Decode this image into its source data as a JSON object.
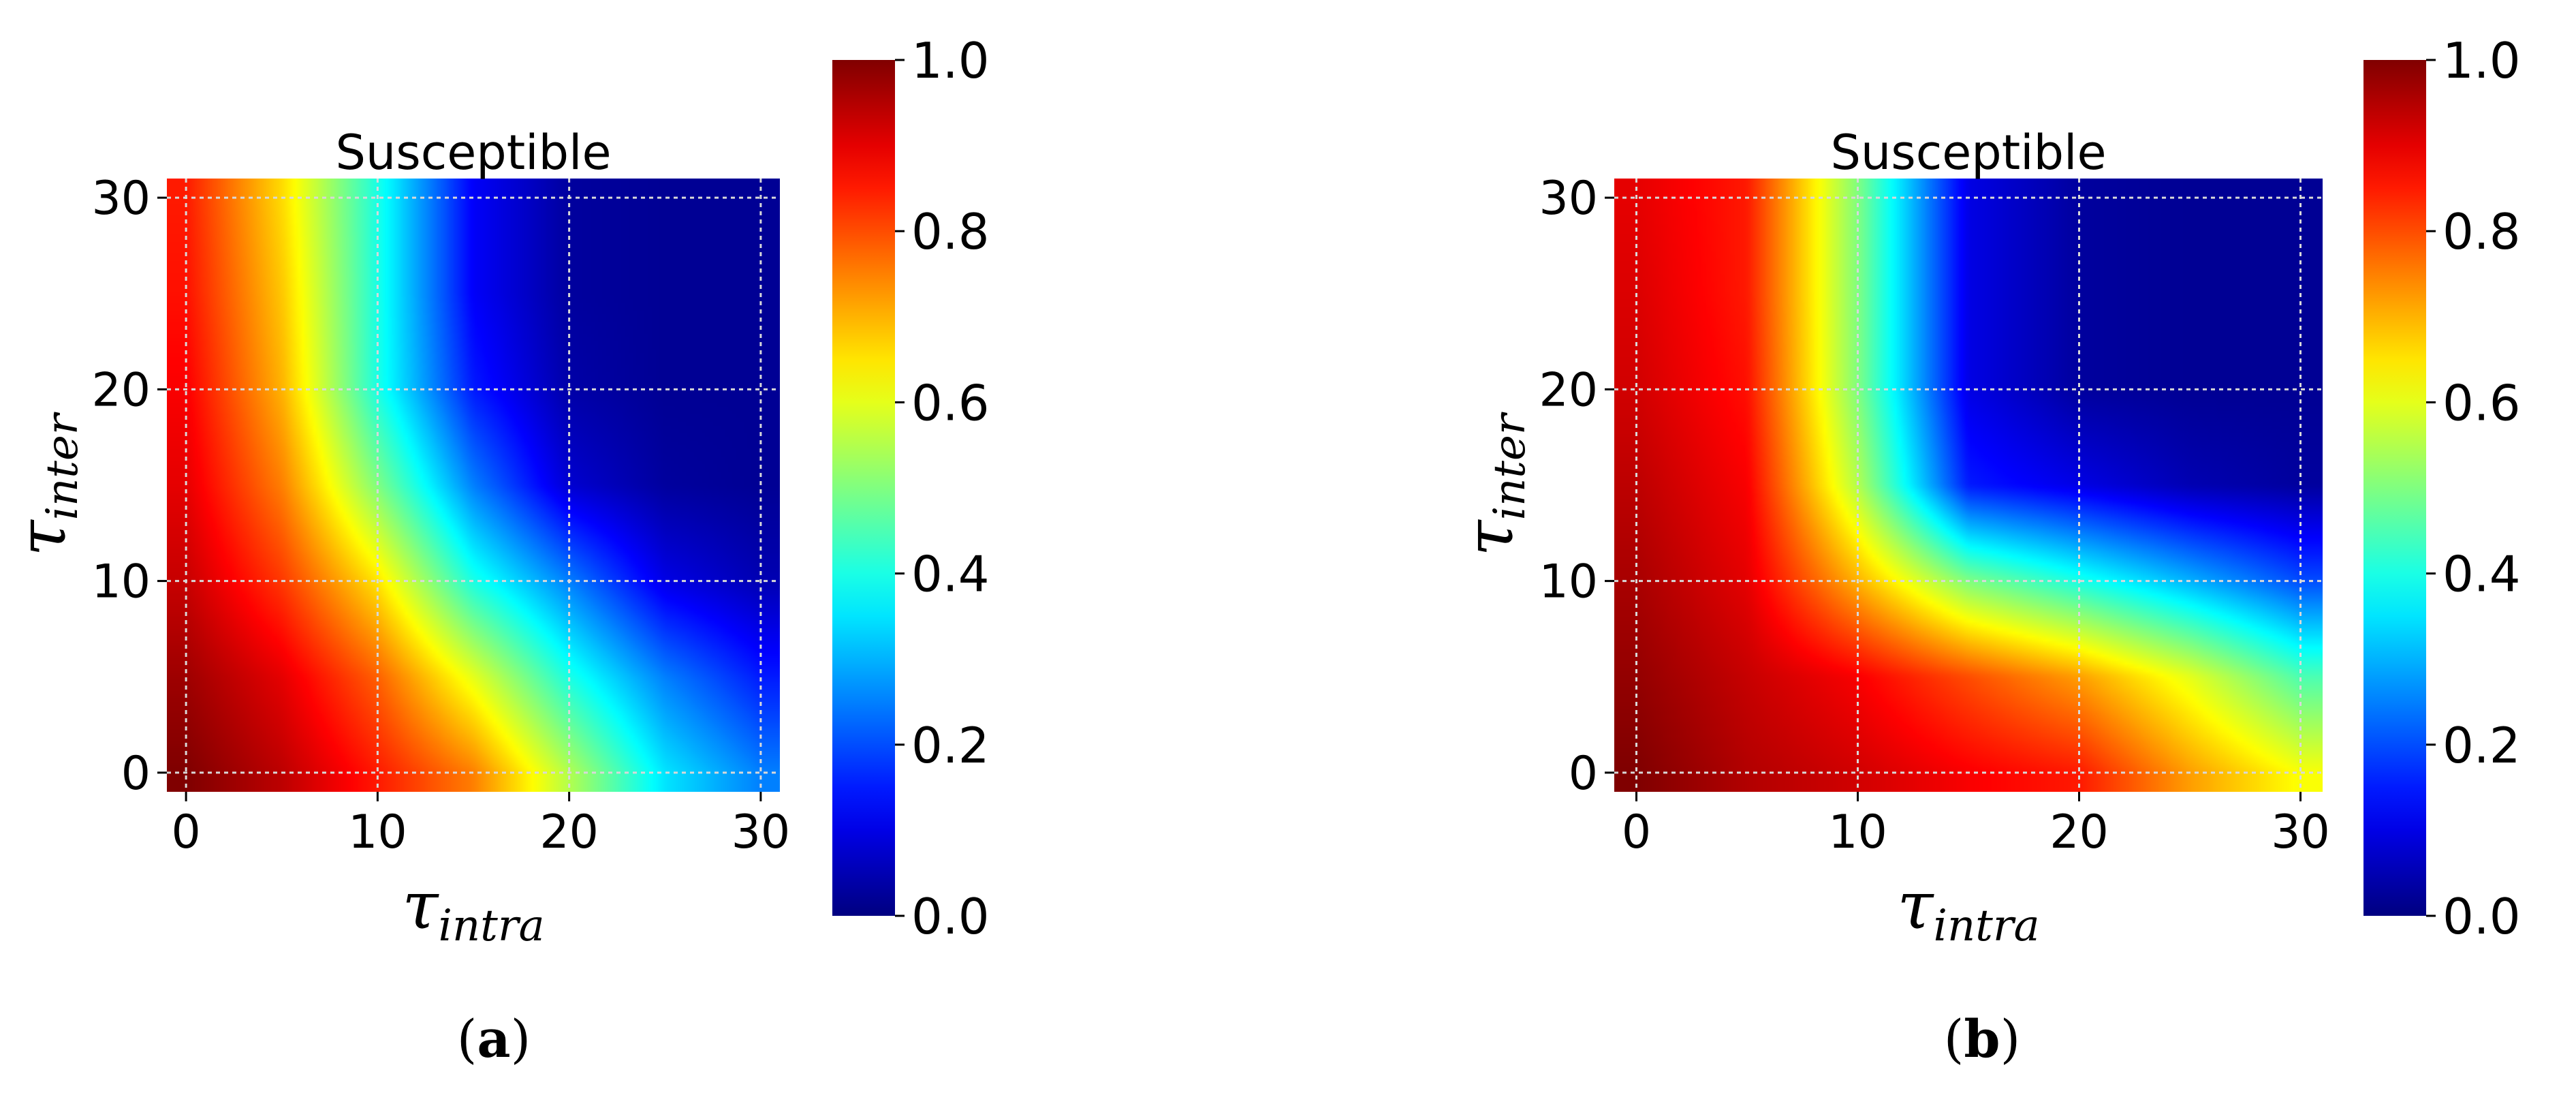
{
  "colorscale": "jet",
  "chart_data": [
    {
      "type": "heatmap",
      "panel": "a",
      "title": "Susceptible",
      "xlabel_base": "τ",
      "xlabel_sub": "intra",
      "ylabel_base": "τ",
      "ylabel_sub": "inter",
      "xlim": [
        -1,
        31
      ],
      "ylim": [
        -1,
        31
      ],
      "xticks": [
        0,
        10,
        20,
        30
      ],
      "yticks": [
        0,
        10,
        20,
        30
      ],
      "grid": true,
      "colorbar": {
        "min": 0.0,
        "max": 1.0,
        "ticks": [
          "0.0",
          "0.2",
          "0.4",
          "0.6",
          "0.8",
          "1.0"
        ]
      },
      "z_grid": {
        "x": [
          0,
          5,
          10,
          15,
          20,
          25,
          30
        ],
        "y": [
          0,
          5,
          10,
          15,
          20,
          25,
          30
        ],
        "values": [
          [
            1.0,
            0.94,
            0.85,
            0.75,
            0.55,
            0.35,
            0.25
          ],
          [
            0.97,
            0.9,
            0.78,
            0.6,
            0.4,
            0.25,
            0.15
          ],
          [
            0.93,
            0.82,
            0.65,
            0.4,
            0.25,
            0.1,
            0.05
          ],
          [
            0.9,
            0.75,
            0.5,
            0.25,
            0.08,
            0.03,
            0.02
          ],
          [
            0.88,
            0.7,
            0.4,
            0.15,
            0.04,
            0.02,
            0.02
          ],
          [
            0.86,
            0.68,
            0.4,
            0.12,
            0.03,
            0.02,
            0.02
          ],
          [
            0.85,
            0.66,
            0.4,
            0.12,
            0.03,
            0.02,
            0.02
          ]
        ]
      }
    },
    {
      "type": "heatmap",
      "panel": "b",
      "title": "Susceptible",
      "xlabel_base": "τ",
      "xlabel_sub": "intra",
      "ylabel_base": "τ",
      "ylabel_sub": "inter",
      "xlim": [
        -1,
        31
      ],
      "ylim": [
        -1,
        31
      ],
      "xticks": [
        0,
        10,
        20,
        30
      ],
      "yticks": [
        0,
        10,
        20,
        30
      ],
      "grid": true,
      "colorbar": {
        "min": 0.0,
        "max": 1.0,
        "ticks": [
          "0.0",
          "0.2",
          "0.4",
          "0.6",
          "0.8",
          "1.0"
        ]
      },
      "z_grid": {
        "x": [
          0,
          5,
          10,
          15,
          20,
          25,
          30
        ],
        "y": [
          0,
          5,
          10,
          15,
          20,
          25,
          30
        ],
        "values": [
          [
            1.0,
            0.95,
            0.92,
            0.88,
            0.85,
            0.72,
            0.62
          ],
          [
            0.98,
            0.93,
            0.88,
            0.8,
            0.72,
            0.6,
            0.45
          ],
          [
            0.96,
            0.9,
            0.7,
            0.5,
            0.4,
            0.3,
            0.2
          ],
          [
            0.94,
            0.88,
            0.55,
            0.15,
            0.1,
            0.05,
            0.03
          ],
          [
            0.92,
            0.86,
            0.5,
            0.1,
            0.03,
            0.02,
            0.02
          ],
          [
            0.91,
            0.85,
            0.5,
            0.1,
            0.03,
            0.02,
            0.02
          ],
          [
            0.9,
            0.85,
            0.5,
            0.1,
            0.03,
            0.02,
            0.02
          ]
        ]
      }
    }
  ],
  "panel_labels": {
    "a": "a",
    "b": "b"
  }
}
